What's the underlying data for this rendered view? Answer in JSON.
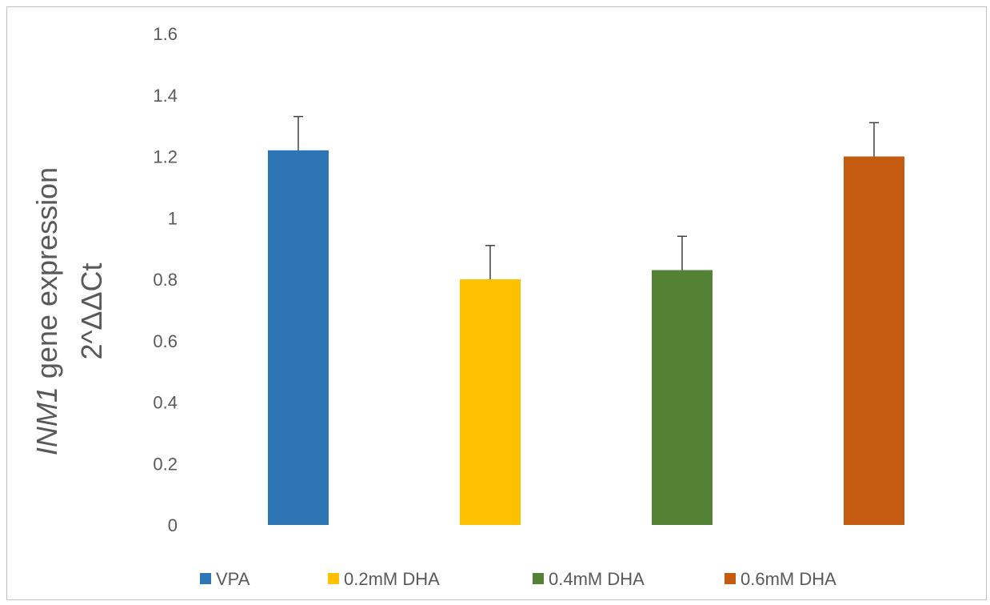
{
  "chart_data": {
    "type": "bar",
    "ylabel_italic": "INM1",
    "ylabel_rest": " gene expression",
    "ylabel_line2": "2^ΔΔCt",
    "ylim": [
      0,
      1.6
    ],
    "yticks": [
      "0",
      "0.2",
      "0.4",
      "0.6",
      "0.8",
      "1",
      "1.2",
      "1.4",
      "1.6"
    ],
    "grid": false,
    "legend_position": "bottom",
    "categories": [
      "VPA",
      "0.2mM DHA",
      "0.4mM DHA",
      "0.6mM DHA"
    ],
    "values": [
      1.22,
      0.8,
      0.83,
      1.2
    ],
    "errors": [
      0.11,
      0.11,
      0.11,
      0.11
    ],
    "colors": [
      "#2E75B6",
      "#FFC000",
      "#548235",
      "#C55A11"
    ],
    "error_bar_color": "#404040"
  }
}
